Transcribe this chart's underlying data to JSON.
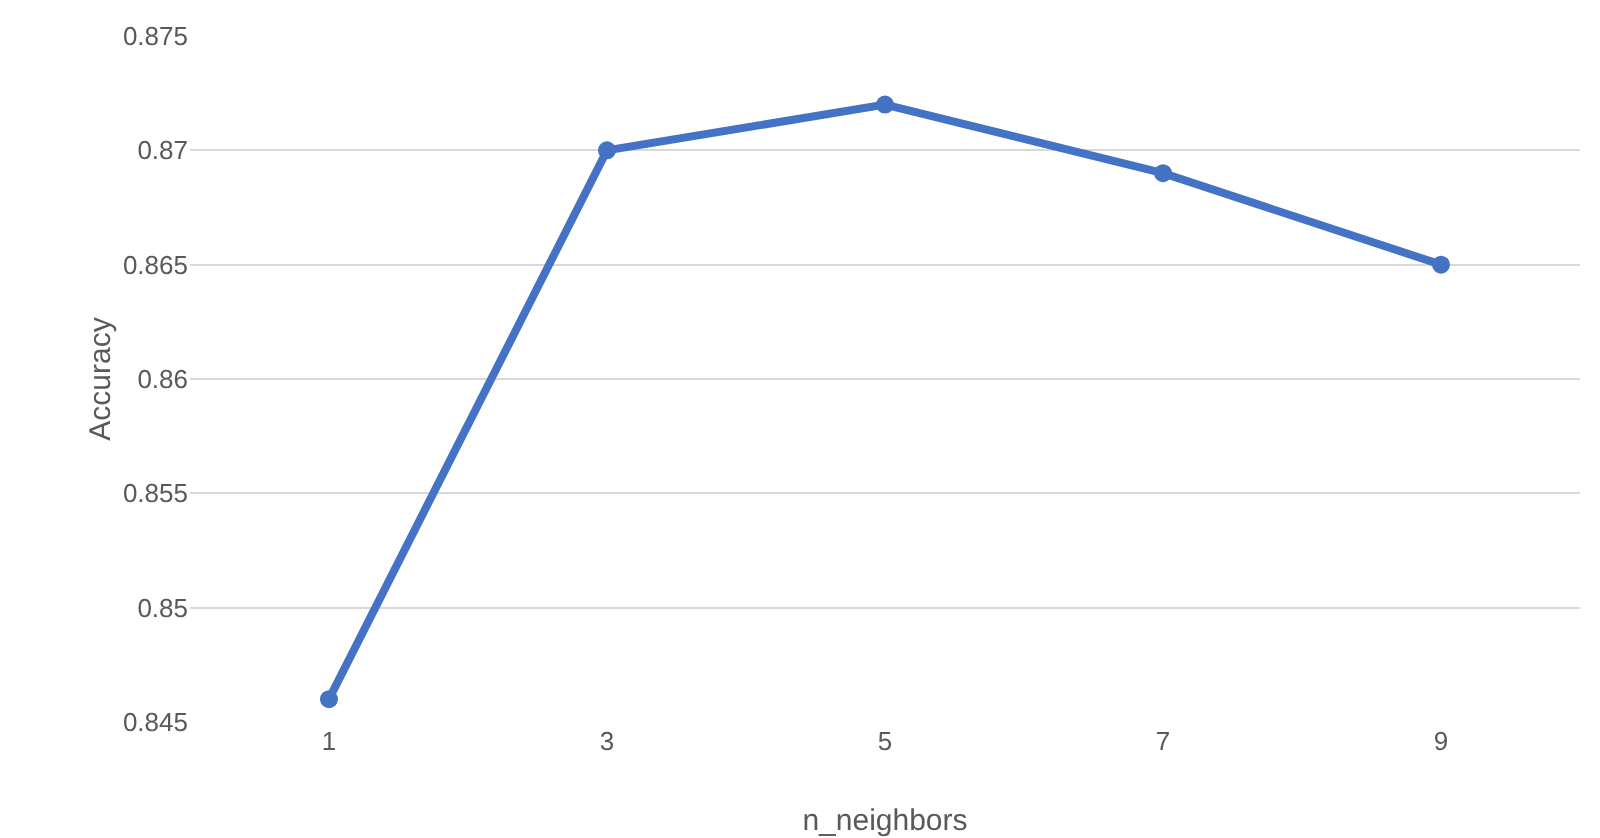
{
  "chart_data": {
    "type": "line",
    "xlabel": "n_neighbors",
    "ylabel": "Accuracy",
    "categories": [
      "1",
      "3",
      "5",
      "7",
      "9"
    ],
    "series": [
      {
        "color": "#4472c4",
        "values": [
          0.846,
          0.87,
          0.872,
          0.869,
          0.865
        ]
      }
    ],
    "ylim": [
      0.845,
      0.875
    ],
    "yticks": [
      0.845,
      0.85,
      0.855,
      0.86,
      0.865,
      0.87,
      0.875
    ],
    "grid": "y",
    "marker": "circle",
    "line_style": "solid"
  }
}
